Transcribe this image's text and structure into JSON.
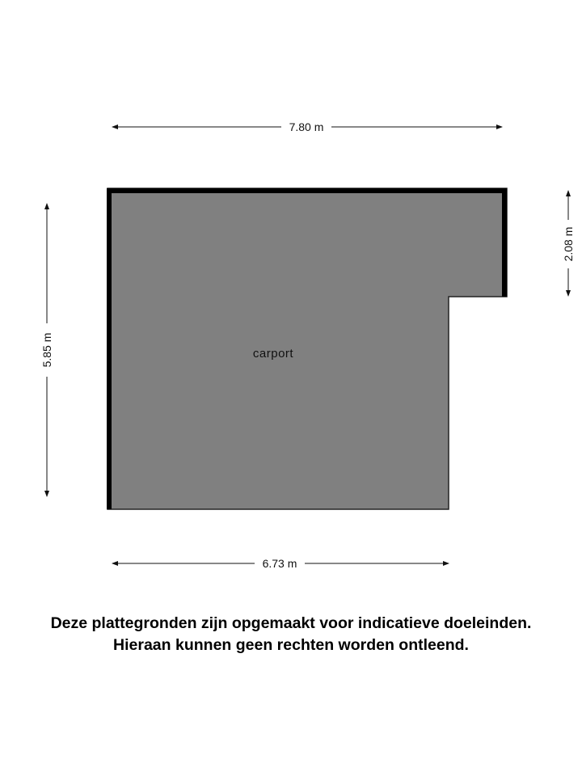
{
  "floorplan": {
    "room_label": "carport",
    "dimensions": {
      "top_width": "7.80 m",
      "bottom_width": "6.73 m",
      "left_height": "5.85 m",
      "right_height": "2.08 m"
    },
    "colors": {
      "floor": "#808080",
      "wall": "#000000"
    }
  },
  "disclaimer": {
    "line1": "Deze plattegronden zijn opgemaakt voor indicatieve doeleinden.",
    "line2": "Hieraan kunnen geen rechten worden ontleend."
  }
}
